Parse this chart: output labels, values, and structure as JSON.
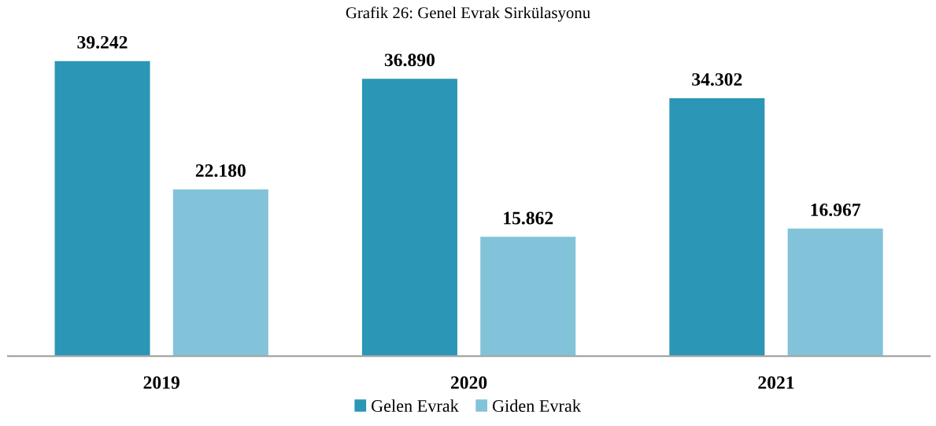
{
  "chart_data": {
    "type": "bar",
    "title": "Grafik 26: Genel Evrak Sirkülasyonu",
    "categories": [
      "2019",
      "2020",
      "2021"
    ],
    "series": [
      {
        "name": "Gelen Evrak",
        "color": "#2b96b5",
        "values": [
          39242,
          36890,
          34302
        ],
        "value_labels": [
          "39.242",
          "36.890",
          "34.302"
        ]
      },
      {
        "name": "Giden Evrak",
        "color": "#82c3d9",
        "values": [
          22180,
          15862,
          16967
        ],
        "value_labels": [
          "22.180",
          "15.862",
          "16.967"
        ]
      }
    ],
    "grid": false,
    "legend": "bottom"
  }
}
